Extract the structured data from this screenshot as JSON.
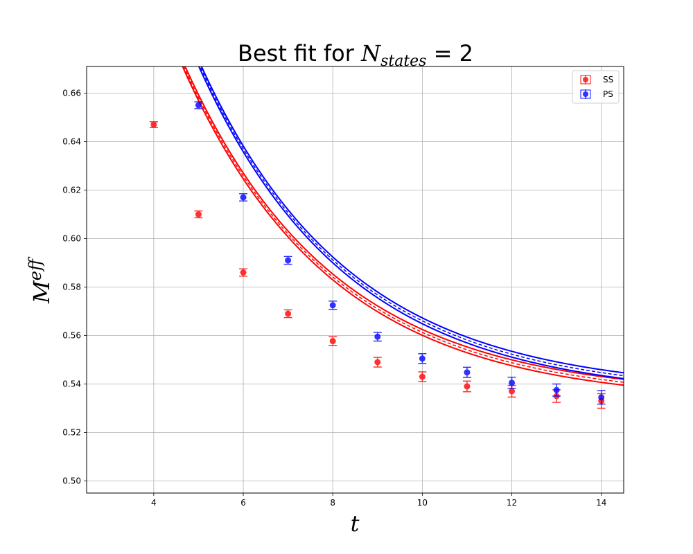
{
  "chart_data": {
    "type": "scatter",
    "title_prefix": "Best fit for ",
    "title_math_base": "N",
    "title_math_sub": "states",
    "title_math_rest": " = 2",
    "xlabel": "t",
    "ylabel_base": "M",
    "ylabel_sup": "eff",
    "xlim": [
      2.5,
      14.5
    ],
    "ylim": [
      0.495,
      0.671
    ],
    "xticks": [
      4,
      6,
      8,
      10,
      12,
      14
    ],
    "yticks": [
      0.5,
      0.52,
      0.54,
      0.56,
      0.58,
      0.6,
      0.62,
      0.64,
      0.66
    ],
    "ytick_labels": [
      "0.50",
      "0.52",
      "0.54",
      "0.56",
      "0.58",
      "0.60",
      "0.62",
      "0.64",
      "0.66"
    ],
    "grid": true,
    "legend_position": "top-right",
    "series": [
      {
        "name": "SS",
        "color": "#ff0000",
        "x": [
          4,
          5,
          6,
          7,
          8,
          9,
          10,
          11,
          12,
          13,
          14
        ],
        "y": [
          0.647,
          0.61,
          0.586,
          0.569,
          0.5577,
          0.549,
          0.543,
          0.539,
          0.537,
          0.535,
          0.533
        ],
        "yerr": [
          0.0012,
          0.0014,
          0.0015,
          0.0016,
          0.0018,
          0.002,
          0.002,
          0.0022,
          0.0024,
          0.0026,
          0.003
        ],
        "fit": {
          "a": 0.5335,
          "b": 0.5585,
          "k": 0.3,
          "band": 0.0012
        }
      },
      {
        "name": "PS",
        "color": "#0000ff",
        "x": [
          5,
          6,
          7,
          8,
          9,
          10,
          11,
          12,
          13,
          14
        ],
        "y": [
          0.655,
          0.617,
          0.591,
          0.5725,
          0.5595,
          0.5505,
          0.5448,
          0.5405,
          0.5375,
          0.5345
        ],
        "yerr": [
          0.0014,
          0.0015,
          0.0016,
          0.0017,
          0.0018,
          0.002,
          0.0021,
          0.0023,
          0.0025,
          0.0028
        ],
        "fit": {
          "a": 0.5355,
          "b": 0.614,
          "k": 0.3,
          "band": 0.0012
        }
      }
    ]
  }
}
